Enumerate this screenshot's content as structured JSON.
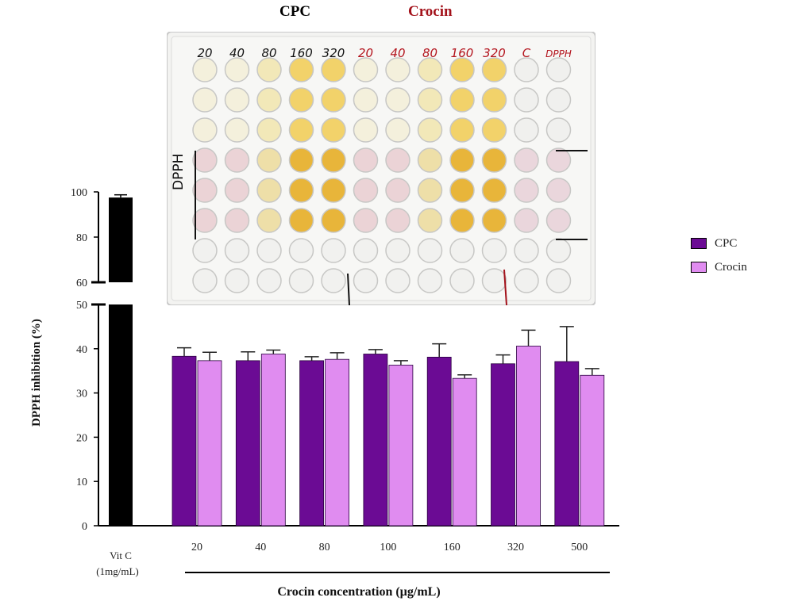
{
  "plate_image": {
    "titles": [
      {
        "text": "CPC",
        "color": "#111111"
      },
      {
        "text": "Crocin",
        "color": "#a3121b"
      }
    ],
    "well_labels_black": [
      "20",
      "40",
      "80",
      "160",
      "320"
    ],
    "well_labels_red": [
      "20",
      "40",
      "80",
      "160",
      "320",
      "C",
      "DPPH"
    ],
    "side_label": "DPPH"
  },
  "chart_data": {
    "type": "bar",
    "ylabel": "DPPH inhibition (%)",
    "xlabel": "Crocin concentration (µg/mL)",
    "ylim": [
      0,
      100
    ],
    "axis_break": [
      50,
      60
    ],
    "yticks_lower": [
      "0",
      "10",
      "20",
      "30",
      "40",
      "50"
    ],
    "yticks_upper": [
      "60",
      "80",
      "100"
    ],
    "control": {
      "label_line1": "Vit C",
      "label_line2": "(1mg/mL)",
      "value": 97.5,
      "error": 1.2,
      "color": "#000000"
    },
    "categories": [
      "20",
      "40",
      "80",
      "100",
      "160",
      "320",
      "500"
    ],
    "series": [
      {
        "name": "CPC",
        "color": "#6b0b94",
        "values": [
          38.3,
          37.3,
          37.3,
          38.8,
          38.1,
          36.6,
          37.1
        ],
        "errors": [
          1.9,
          2.0,
          0.9,
          1.0,
          3.0,
          2.0,
          7.9
        ]
      },
      {
        "name": "Crocin",
        "color": "#e08cf0",
        "values": [
          37.3,
          38.8,
          37.6,
          36.3,
          33.3,
          40.6,
          34.0
        ],
        "errors": [
          1.9,
          0.9,
          1.5,
          1.0,
          0.8,
          3.6,
          1.5
        ]
      }
    ],
    "legend_position": "right",
    "grid": false
  }
}
